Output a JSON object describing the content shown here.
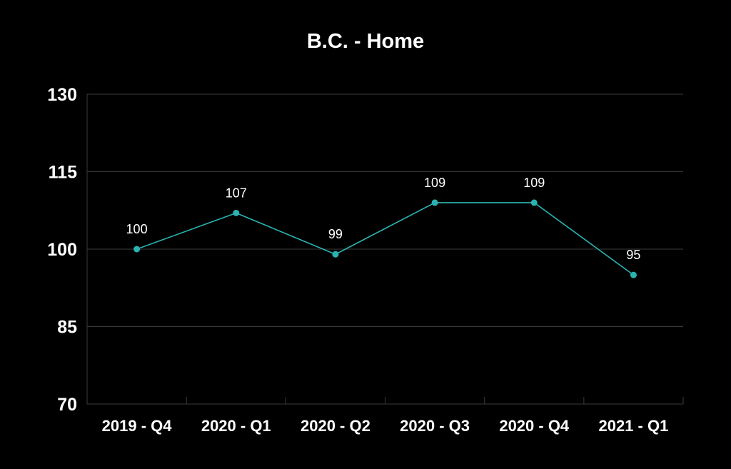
{
  "chart_data": {
    "type": "line",
    "title": "B.C. - Home",
    "xlabel": "",
    "ylabel": "",
    "categories": [
      "2019 - Q4",
      "2020 - Q1",
      "2020 - Q2",
      "2020 - Q3",
      "2020 - Q4",
      "2021 - Q1"
    ],
    "series": [
      {
        "values": [
          100,
          107,
          99,
          109,
          109,
          95
        ],
        "color": "#2bb3b1"
      }
    ],
    "data_labels": [
      "100",
      "107",
      "99",
      "109",
      "109",
      "95"
    ],
    "ylim": [
      70,
      130
    ],
    "yticks": [
      70,
      85,
      100,
      115,
      130
    ],
    "ytick_labels": [
      "70",
      "85",
      "100",
      "115",
      "130"
    ],
    "grid": true,
    "legend": "none",
    "colors": {
      "background": "#000000",
      "text": "#ffffff",
      "grid": "#3a3a3a",
      "line": "#2bb3b1"
    }
  }
}
